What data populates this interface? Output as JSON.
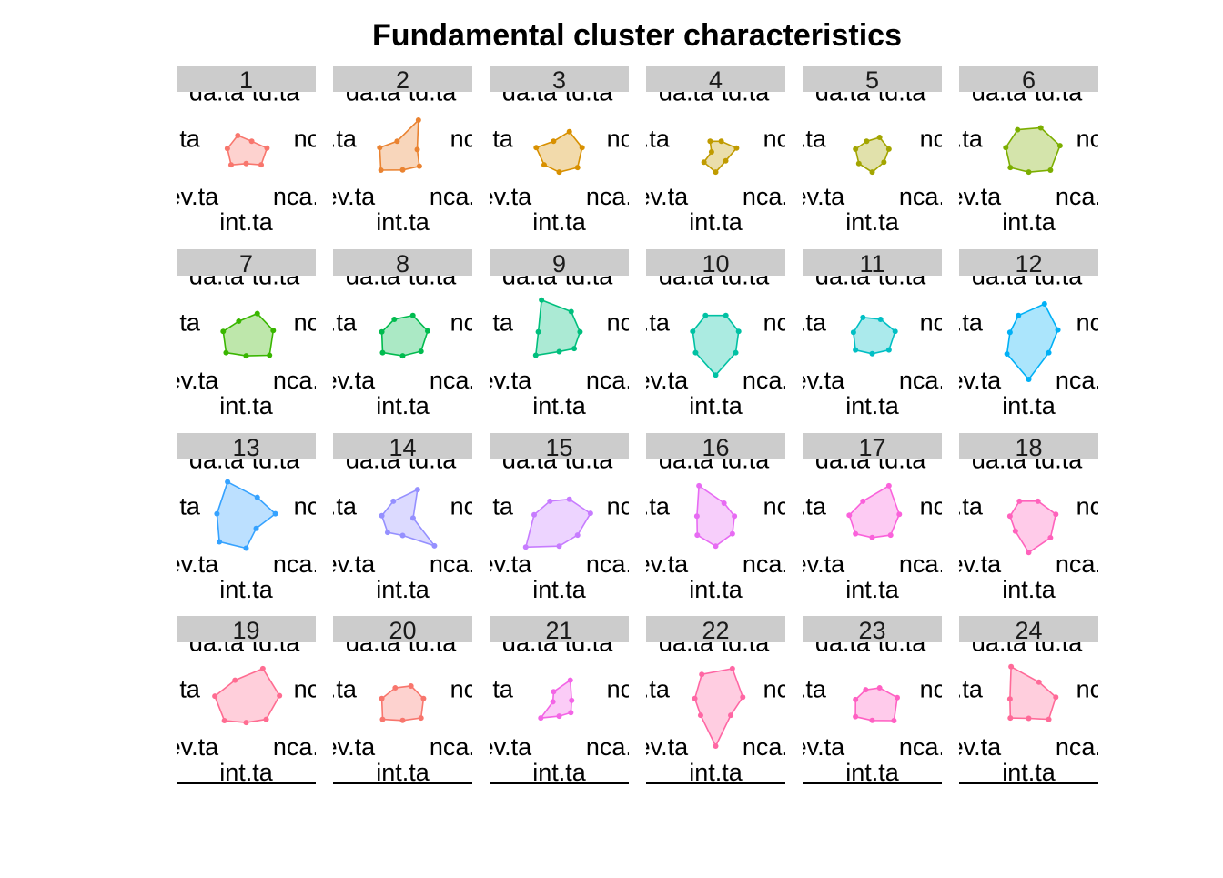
{
  "chart_data": {
    "type": "radar",
    "title": "Fundamental cluster characteristics",
    "axis_labels": [
      "da.ta",
      "td.ta",
      "ncl.",
      "nca.t",
      "int.ta",
      "ev.ta",
      "p.ta"
    ],
    "value_range": [
      0,
      1
    ],
    "panels": [
      {
        "label": "1",
        "color": "#F8766D",
        "values": [
          0.45,
          0.3,
          0.5,
          0.45,
          0.25,
          0.45,
          0.45
        ]
      },
      {
        "label": "2",
        "color": "#EA8331",
        "values": [
          0.3,
          0.85,
          0.35,
          0.5,
          0.4,
          0.65,
          0.55
        ]
      },
      {
        "label": "3",
        "color": "#D89000",
        "values": [
          0.3,
          0.55,
          0.55,
          0.55,
          0.45,
          0.45,
          0.55
        ]
      },
      {
        "label": "4",
        "color": "#C09B00",
        "values": [
          0.3,
          0.3,
          0.5,
          0.3,
          0.45,
          0.35,
          0.1
        ]
      },
      {
        "label": "5",
        "color": "#A3A500",
        "values": [
          0.3,
          0.4,
          0.4,
          0.35,
          0.45,
          0.4,
          0.4
        ]
      },
      {
        "label": "6",
        "color": "#7CAE00",
        "values": [
          0.6,
          0.65,
          0.75,
          0.65,
          0.45,
          0.55,
          0.55
        ]
      },
      {
        "label": "7",
        "color": "#39B600",
        "values": [
          0.4,
          0.6,
          0.65,
          0.7,
          0.45,
          0.6,
          0.55
        ]
      },
      {
        "label": "8",
        "color": "#00BB4E",
        "values": [
          0.45,
          0.55,
          0.6,
          0.55,
          0.45,
          0.6,
          0.5
        ]
      },
      {
        "label": "9",
        "color": "#00BF7D",
        "values": [
          0.95,
          0.65,
          0.5,
          0.45,
          0.35,
          0.7,
          0.5
        ]
      },
      {
        "label": "10",
        "color": "#00C1A3",
        "values": [
          0.55,
          0.55,
          0.55,
          0.6,
          0.9,
          0.6,
          0.55
        ]
      },
      {
        "label": "11",
        "color": "#00BFC4",
        "values": [
          0.5,
          0.45,
          0.55,
          0.5,
          0.4,
          0.5,
          0.45
        ]
      },
      {
        "label": "12",
        "color": "#00B0F6",
        "values": [
          0.55,
          0.85,
          0.7,
          0.6,
          1.0,
          0.65,
          0.45
        ]
      },
      {
        "label": "13",
        "color": "#35A2FF",
        "values": [
          1.0,
          0.6,
          0.7,
          0.3,
          0.65,
          0.8,
          0.7
        ]
      },
      {
        "label": "14",
        "color": "#9590FF",
        "values": [
          0.5,
          0.8,
          0.25,
          0.95,
          0.35,
          0.45,
          0.5
        ]
      },
      {
        "label": "15",
        "color": "#C77CFF",
        "values": [
          0.5,
          0.55,
          0.75,
          0.55,
          0.6,
          1.0,
          0.6
        ]
      },
      {
        "label": "16",
        "color": "#E76BF3",
        "values": [
          0.9,
          0.45,
          0.45,
          0.5,
          0.6,
          0.55,
          0.45
        ]
      },
      {
        "label": "17",
        "color": "#FA62DB",
        "values": [
          0.5,
          0.9,
          0.65,
          0.55,
          0.4,
          0.5,
          0.55
        ]
      },
      {
        "label": "18",
        "color": "#FF62BC",
        "values": [
          0.5,
          0.5,
          0.65,
          0.65,
          0.75,
          0.4,
          0.45
        ]
      },
      {
        "label": "19",
        "color": "#FF6C91",
        "values": [
          0.6,
          0.9,
          0.8,
          0.6,
          0.45,
          0.65,
          0.75
        ]
      },
      {
        "label": "20",
        "color": "#F8766D",
        "values": [
          0.4,
          0.45,
          0.5,
          0.55,
          0.4,
          0.6,
          0.5
        ]
      },
      {
        "label": "21",
        "color": "#F365E6",
        "values": [
          0.3,
          0.6,
          0.3,
          0.35,
          0.3,
          0.55,
          0.15
        ]
      },
      {
        "label": "22",
        "color": "#FF67A4",
        "values": [
          0.75,
          0.9,
          0.65,
          0.45,
          1.0,
          0.45,
          0.5
        ]
      },
      {
        "label": "23",
        "color": "#FF61C3",
        "values": [
          0.35,
          0.4,
          0.6,
          0.65,
          0.4,
          0.5,
          0.4
        ]
      },
      {
        "label": "24",
        "color": "#FF6A98",
        "values": [
          0.95,
          0.55,
          0.65,
          0.6,
          0.35,
          0.55,
          0.45
        ]
      }
    ]
  }
}
